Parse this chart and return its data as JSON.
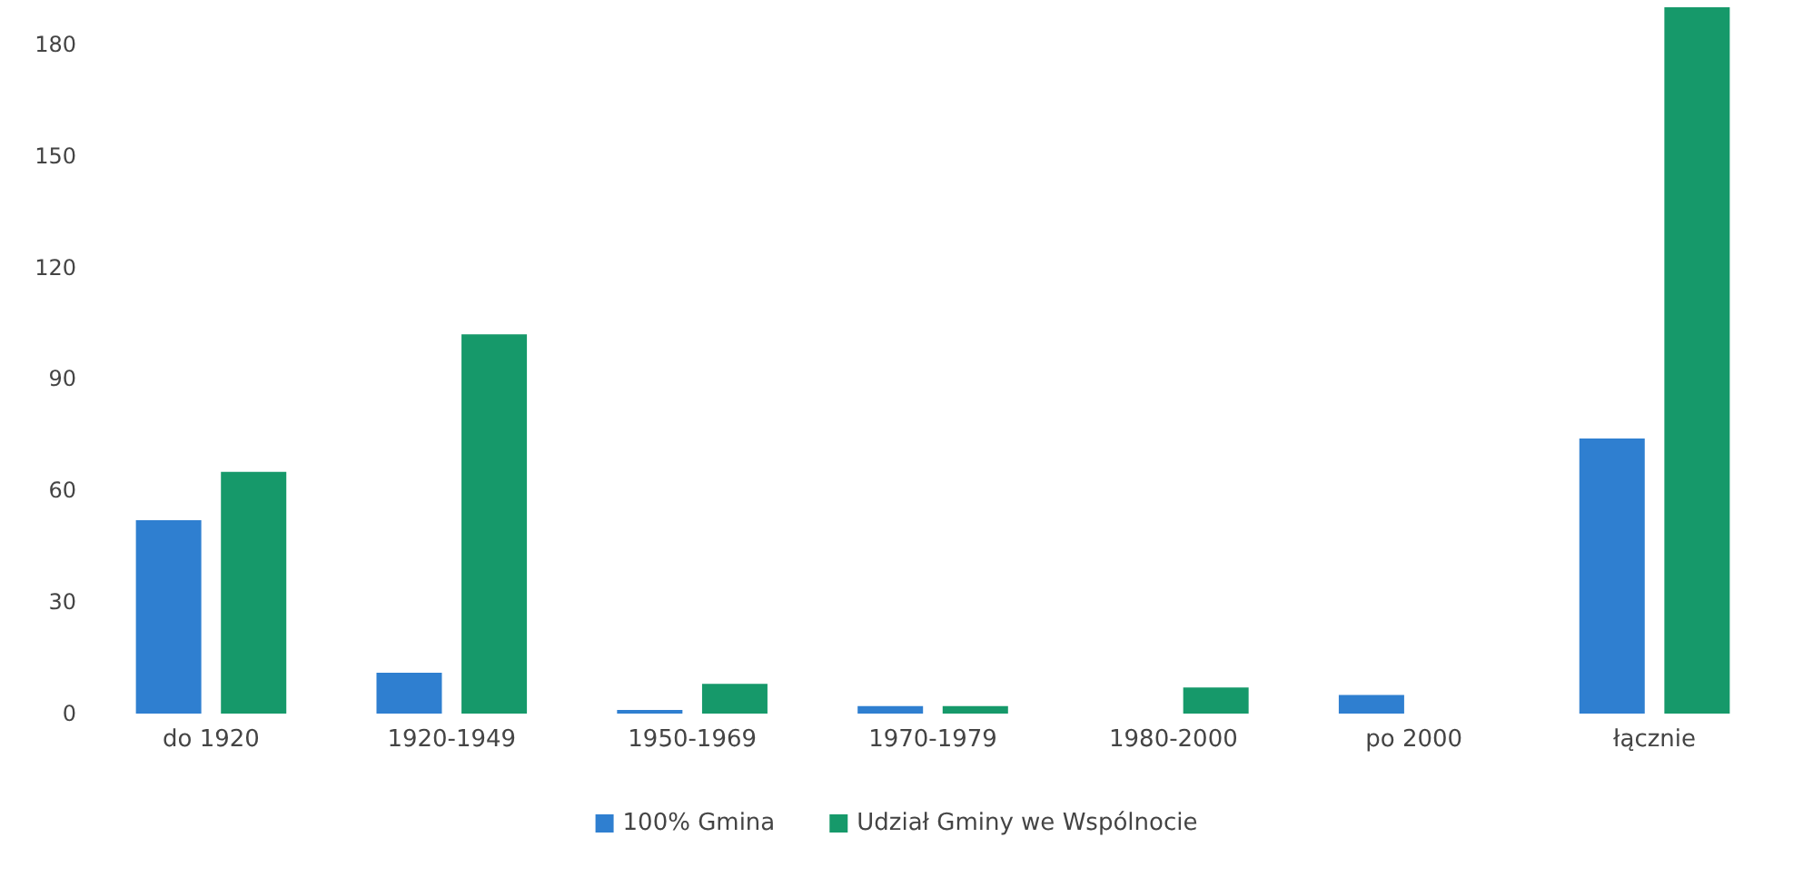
{
  "chart_data": {
    "type": "bar",
    "categories": [
      "do 1920",
      "1920-1949",
      "1950-1969",
      "1970-1979",
      "1980-2000",
      "po 2000",
      "łącznie"
    ],
    "series": [
      {
        "name": "100% Gmina",
        "color": "#2f7fd0",
        "values": [
          52,
          11,
          1,
          2,
          0,
          5,
          74
        ]
      },
      {
        "name": "Udział Gminy we Wspólnocie",
        "color": "#16996a",
        "values": [
          65,
          102,
          8,
          2,
          7,
          0,
          190
        ]
      }
    ],
    "ylim": [
      0,
      190
    ],
    "yticks": [
      0,
      30,
      60,
      90,
      120,
      150,
      180
    ],
    "grid": false,
    "legend": "bottom"
  }
}
